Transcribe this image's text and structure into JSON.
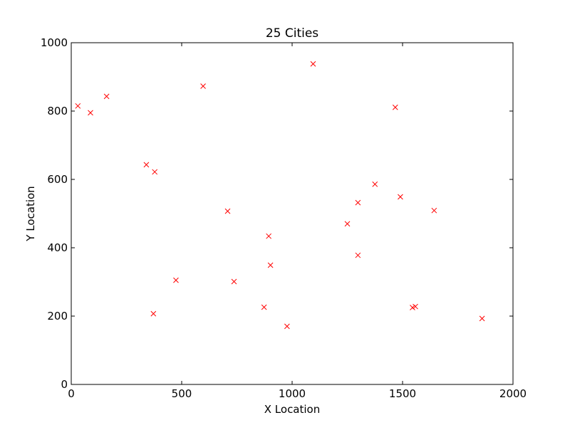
{
  "chart_data": {
    "type": "scatter",
    "title": "25 Cities",
    "xlabel": "X Location",
    "ylabel": "Y Location",
    "xlim": [
      0,
      2000
    ],
    "ylim": [
      0,
      1000
    ],
    "xticks": [
      "0",
      "500",
      "1000",
      "1500",
      "2000"
    ],
    "yticks": [
      "0",
      "200",
      "400",
      "600",
      "800",
      "1000"
    ],
    "grid": false,
    "marker": "x",
    "marker_color": "#ff0000",
    "series": [
      {
        "points": [
          {
            "x": 30,
            "y": 815
          },
          {
            "x": 87,
            "y": 795
          },
          {
            "x": 160,
            "y": 843
          },
          {
            "x": 340,
            "y": 643
          },
          {
            "x": 378,
            "y": 622
          },
          {
            "x": 372,
            "y": 207
          },
          {
            "x": 474,
            "y": 305
          },
          {
            "x": 597,
            "y": 873
          },
          {
            "x": 708,
            "y": 507
          },
          {
            "x": 737,
            "y": 301
          },
          {
            "x": 873,
            "y": 226
          },
          {
            "x": 894,
            "y": 434
          },
          {
            "x": 902,
            "y": 349
          },
          {
            "x": 977,
            "y": 170
          },
          {
            "x": 1095,
            "y": 938
          },
          {
            "x": 1250,
            "y": 470
          },
          {
            "x": 1298,
            "y": 532
          },
          {
            "x": 1298,
            "y": 378
          },
          {
            "x": 1375,
            "y": 586
          },
          {
            "x": 1467,
            "y": 811
          },
          {
            "x": 1490,
            "y": 549
          },
          {
            "x": 1545,
            "y": 225
          },
          {
            "x": 1558,
            "y": 228
          },
          {
            "x": 1643,
            "y": 509
          },
          {
            "x": 1860,
            "y": 193
          }
        ]
      }
    ]
  }
}
